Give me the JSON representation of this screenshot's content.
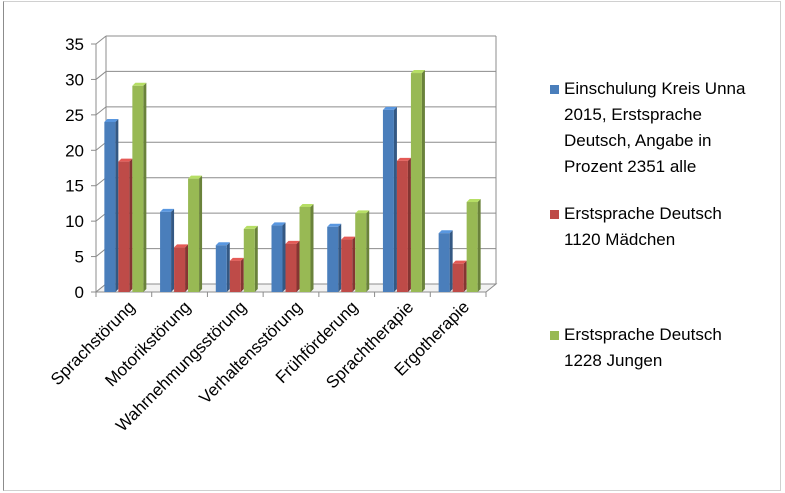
{
  "chart_data": {
    "type": "bar",
    "title": "",
    "xlabel": "",
    "ylabel": "",
    "ylim": [
      0,
      35
    ],
    "yticks": [
      0,
      5,
      10,
      15,
      20,
      25,
      30,
      35
    ],
    "grid": true,
    "legend_position": "right",
    "categories": [
      "Sprachstörung",
      "Motorikstörung",
      "Wahrnehmungsstörung",
      "Verhaltensstörung",
      "Frühförderung",
      "Sprachtherapie",
      "Ergotherapie"
    ],
    "series": [
      {
        "name": "Einschulung Kreis Unna 2015,  Erstsprache Deutsch, Angabe in Prozent 2351 alle",
        "color": "#4a7ebb",
        "values": [
          24,
          11.3,
          6.6,
          9.4,
          9.2,
          25.7,
          8.3
        ]
      },
      {
        "name": "Erstsprache Deutsch 1120 Mädchen",
        "color": "#be4b48",
        "values": [
          18.4,
          6.3,
          4.4,
          6.8,
          7.4,
          18.5,
          4
        ]
      },
      {
        "name": "Erstsprache Deutsch 1228 Jungen",
        "color": "#98b954",
        "values": [
          29.1,
          16,
          8.9,
          12,
          11.1,
          30.9,
          12.7
        ]
      }
    ]
  },
  "legend": [
    {
      "label": "Einschulung Kreis Unna\n2015,  Erstsprache\nDeutsch, Angabe in\nProzent 2351 alle",
      "color": "#4a7ebb"
    },
    {
      "label": "Erstsprache Deutsch\n1120 Mädchen",
      "color": "#be4b48"
    },
    {
      "label": "Erstsprache Deutsch\n1228 Jungen",
      "color": "#98b954"
    }
  ]
}
